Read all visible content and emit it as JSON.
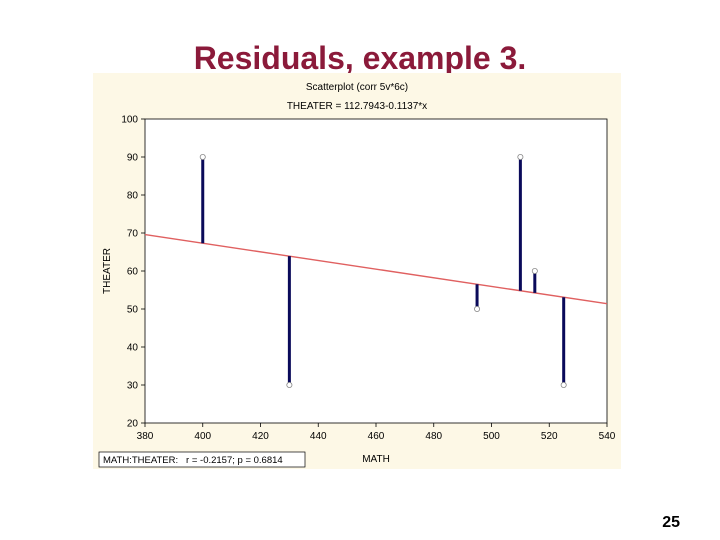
{
  "slide": {
    "title": "Residuals, example 3.",
    "page_number": "25"
  },
  "chart_data": {
    "type": "scatter",
    "title": "Scatterplot (corr 5v*6c)",
    "subtitle": "THEATER = 112.7943-0.1137*x",
    "xlabel": "MATH",
    "ylabel": "THEATER",
    "xlim": [
      380,
      540
    ],
    "ylim": [
      20,
      100
    ],
    "xticks": [
      380,
      400,
      420,
      440,
      460,
      480,
      500,
      520,
      540
    ],
    "yticks": [
      20,
      30,
      40,
      50,
      60,
      70,
      80,
      90,
      100
    ],
    "grid": false,
    "points": [
      {
        "x": 400,
        "y": 90
      },
      {
        "x": 430,
        "y": 30
      },
      {
        "x": 495,
        "y": 50
      },
      {
        "x": 510,
        "y": 90
      },
      {
        "x": 515,
        "y": 60
      },
      {
        "x": 525,
        "y": 30
      }
    ],
    "regression": {
      "intercept": 112.7943,
      "slope": -0.1137
    },
    "annotation": "MATH:THEATER:   r = -0.2157; p = 0.6814",
    "colors": {
      "regression_line": "#e06060",
      "residual": "#0a0a5a",
      "point": "#ffffff",
      "background": "#fdf8e6"
    }
  }
}
